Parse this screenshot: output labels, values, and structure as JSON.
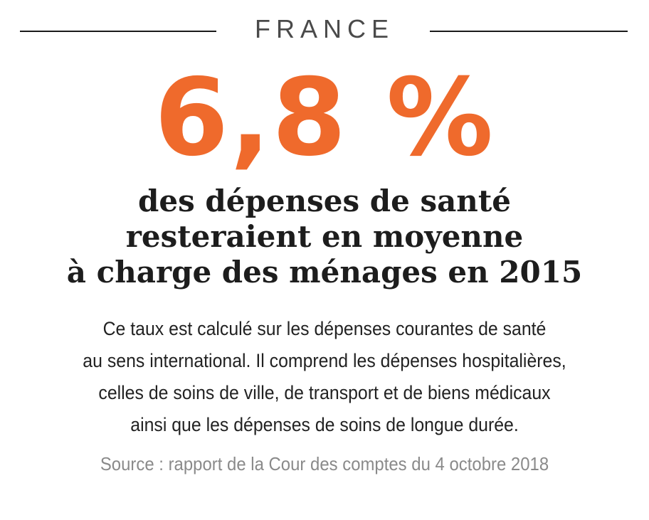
{
  "header": {
    "country": "FRANCE"
  },
  "stat": {
    "value": "6,8 %"
  },
  "headline": {
    "lines": [
      "des dépenses de santé",
      "resteraient en moyenne",
      "à charge des ménages en 2015"
    ]
  },
  "body": {
    "lines": [
      "Ce taux est calculé sur les dépenses courantes de santé",
      "au sens international. Il comprend les dépenses hospitalières,",
      "celles de soins de ville, de transport et de biens médicaux",
      "ainsi que les dépenses de soins de longue durée."
    ]
  },
  "source": "Source : rapport de la Cour des comptes du 4 octobre 2018",
  "colors": {
    "accent": "#ef6a2c",
    "text": "#1d1d1d",
    "muted": "#8a8a8a"
  }
}
